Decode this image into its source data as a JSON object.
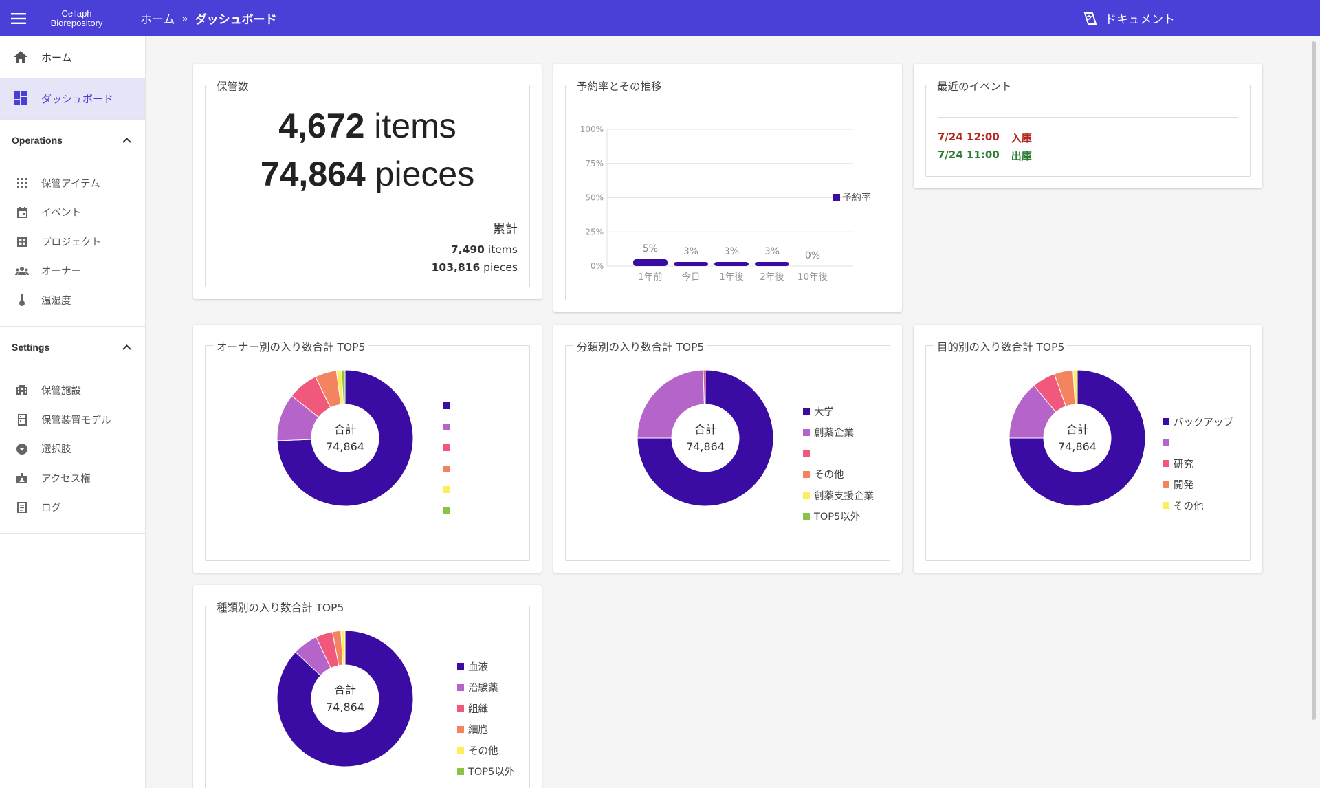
{
  "app": {
    "brand_line1": "Cellaph",
    "brand_line2": "Biorepository"
  },
  "breadcrumb": {
    "home": "ホーム",
    "separator": "»",
    "current": "ダッシュボード"
  },
  "header": {
    "docs_label": "ドキュメント"
  },
  "sidebar": {
    "items": [
      {
        "label": "ホーム",
        "icon": "home-icon"
      },
      {
        "label": "ダッシュボード",
        "icon": "dashboard-icon"
      }
    ],
    "operations": {
      "title": "Operations",
      "items": [
        {
          "label": "保管アイテム",
          "icon": "grid-icon"
        },
        {
          "label": "イベント",
          "icon": "calendar-icon"
        },
        {
          "label": "プロジェクト",
          "icon": "project-icon"
        },
        {
          "label": "オーナー",
          "icon": "people-icon"
        },
        {
          "label": "温湿度",
          "icon": "thermometer-icon"
        }
      ]
    },
    "settings": {
      "title": "Settings",
      "items": [
        {
          "label": "保管施設",
          "icon": "building-icon"
        },
        {
          "label": "保管装置モデル",
          "icon": "fridge-icon"
        },
        {
          "label": "選択肢",
          "icon": "dropdown-icon"
        },
        {
          "label": "アクセス権",
          "icon": "badge-icon"
        },
        {
          "label": "ログ",
          "icon": "log-icon"
        }
      ]
    }
  },
  "storage": {
    "title": "保管数",
    "items_value": "4,672",
    "items_unit": "items",
    "pieces_value": "74,864",
    "pieces_unit": "pieces",
    "cumulative_label": "累計",
    "cum_items_value": "7,490",
    "cum_items_unit": "items",
    "cum_pieces_value": "103,816",
    "cum_pieces_unit": "pieces"
  },
  "reservation": {
    "title": "予約率とその推移",
    "chart_data": {
      "type": "bar",
      "categories": [
        "1年前",
        "今日",
        "1年後",
        "2年後",
        "10年後"
      ],
      "series": [
        {
          "name": "予約率",
          "values": [
            5,
            3,
            3,
            3,
            0
          ]
        }
      ],
      "data_labels": [
        "5%",
        "3%",
        "3%",
        "3%",
        "0%"
      ],
      "ylim": [
        0,
        100
      ],
      "yticks": [
        "0%",
        "25%",
        "50%",
        "75%",
        "100%"
      ],
      "grid": true,
      "legend": "right",
      "color": "#3a0ca3"
    }
  },
  "events": {
    "title": "最近のイベント",
    "items": [
      {
        "time": "7/24 12:00",
        "type": "入庫",
        "color": "#b3261e"
      },
      {
        "time": "7/24 11:00",
        "type": "出庫",
        "color": "#2e7d32"
      }
    ]
  },
  "colors": {
    "primary": "#4a3fd6",
    "deep": "#3a0ca3",
    "violet": "#b565c9",
    "pink": "#f0587c",
    "orange": "#f4845f",
    "yellow": "#fdef5a",
    "green": "#8bc34a"
  },
  "donut_total_label": "合計",
  "donut_total_value": "74,864",
  "donuts": [
    {
      "title": "オーナー別の入り数合計 TOP5",
      "chart_data": {
        "type": "pie",
        "labels": [
          "",
          "",
          "",
          "",
          "",
          ""
        ],
        "values": [
          72.5,
          11,
          7,
          5,
          1.2,
          0.8
        ],
        "colors": [
          "#3a0ca3",
          "#b565c9",
          "#f0587c",
          "#f4845f",
          "#fdef5a",
          "#8bc34a"
        ]
      }
    },
    {
      "title": "分類別の入り数合計 TOP5",
      "chart_data": {
        "type": "pie",
        "labels": [
          "大学",
          "創薬企業",
          "",
          "その他",
          "創薬支援企業",
          "TOP5以外"
        ],
        "values": [
          75,
          24.5,
          0.5,
          0,
          0,
          0
        ],
        "colors": [
          "#3a0ca3",
          "#b565c9",
          "#f0587c",
          "#f4845f",
          "#fdef5a",
          "#8bc34a"
        ]
      }
    },
    {
      "title": "目的別の入り数合計 TOP5",
      "chart_data": {
        "type": "pie",
        "labels": [
          "バックアップ",
          "",
          "研究",
          "開発",
          "その他"
        ],
        "values": [
          75,
          14,
          5.5,
          4.5,
          1
        ],
        "colors": [
          "#3a0ca3",
          "#b565c9",
          "#f0587c",
          "#f4845f",
          "#fdef5a"
        ]
      }
    },
    {
      "title": "種類別の入り数合計 TOP5",
      "chart_data": {
        "type": "pie",
        "labels": [
          "血液",
          "治験薬",
          "組織",
          "細胞",
          "その他",
          "TOP5以外"
        ],
        "values": [
          87,
          6,
          4,
          2,
          1,
          0
        ],
        "colors": [
          "#3a0ca3",
          "#b565c9",
          "#f0587c",
          "#f4845f",
          "#fdef5a",
          "#8bc34a"
        ]
      }
    }
  ]
}
